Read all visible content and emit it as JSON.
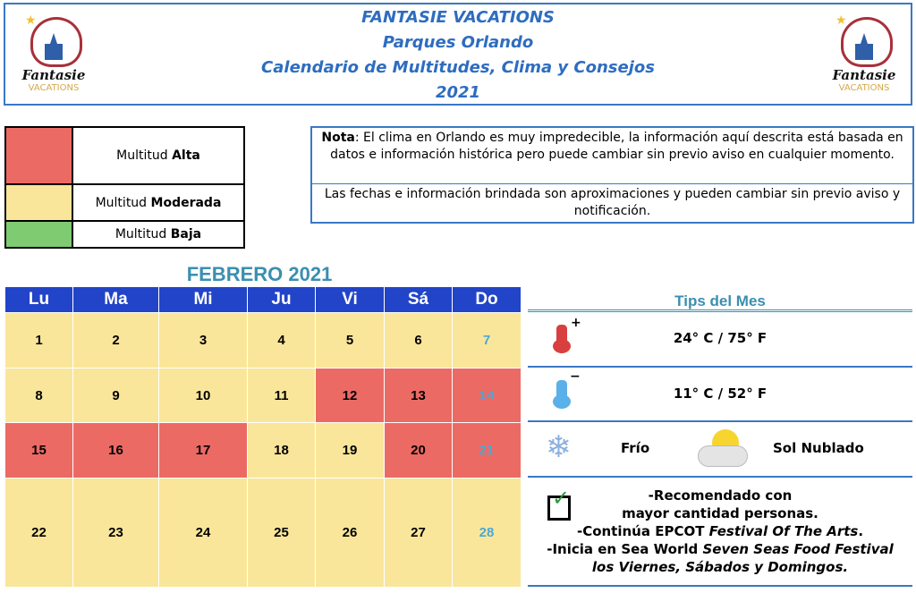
{
  "header": {
    "title": "FANTASIE VACATIONS",
    "subtitle": "Parques Orlando",
    "heading": "Calendario de Multitudes, Clima y Consejos",
    "year": "2021",
    "logo_text": "Fantasie",
    "logo_sub": "VACATIONS"
  },
  "legend": [
    {
      "prefix": "Multitud ",
      "level": "Alta",
      "color": "#ec6a64"
    },
    {
      "prefix": "Multitud ",
      "level": "Moderada",
      "color": "#fae69a"
    },
    {
      "prefix": "Multitud ",
      "level": "Baja",
      "color": "#7ecb72"
    }
  ],
  "note": {
    "label": "Nota",
    "text1": ": El clima en Orlando es muy impredecible, la información aquí descrita está basada en datos e información histórica pero puede cambiar sin previo aviso en cualquier momento.",
    "text2": "Las fechas e información brindada son aproximaciones y pueden cambiar sin previo aviso y notificación."
  },
  "calendar": {
    "title": "FEBRERO 2021",
    "days": [
      "Lu",
      "Ma",
      "Mi",
      "Ju",
      "Vi",
      "Sá",
      "Do"
    ],
    "weeks": [
      [
        {
          "d": "1",
          "c": "moderada"
        },
        {
          "d": "2",
          "c": "moderada"
        },
        {
          "d": "3",
          "c": "moderada"
        },
        {
          "d": "4",
          "c": "moderada"
        },
        {
          "d": "5",
          "c": "moderada"
        },
        {
          "d": "6",
          "c": "moderada"
        },
        {
          "d": "7",
          "c": "moderada"
        }
      ],
      [
        {
          "d": "8",
          "c": "moderada"
        },
        {
          "d": "9",
          "c": "moderada"
        },
        {
          "d": "10",
          "c": "moderada"
        },
        {
          "d": "11",
          "c": "moderada"
        },
        {
          "d": "12",
          "c": "alta"
        },
        {
          "d": "13",
          "c": "alta"
        },
        {
          "d": "14",
          "c": "alta"
        }
      ],
      [
        {
          "d": "15",
          "c": "alta"
        },
        {
          "d": "16",
          "c": "alta"
        },
        {
          "d": "17",
          "c": "alta"
        },
        {
          "d": "18",
          "c": "moderada"
        },
        {
          "d": "19",
          "c": "moderada"
        },
        {
          "d": "20",
          "c": "alta"
        },
        {
          "d": "21",
          "c": "alta"
        }
      ],
      [
        {
          "d": "22",
          "c": "moderada"
        },
        {
          "d": "23",
          "c": "moderada"
        },
        {
          "d": "24",
          "c": "moderada"
        },
        {
          "d": "25",
          "c": "moderada"
        },
        {
          "d": "26",
          "c": "moderada"
        },
        {
          "d": "27",
          "c": "moderada"
        },
        {
          "d": "28",
          "c": "moderada"
        }
      ]
    ]
  },
  "tips": {
    "title": "Tips del Mes",
    "high": "24° C / 75° F",
    "low": "11° C / 52° F",
    "cold": "Frío",
    "weather": "Sol Nublado",
    "rec1": "-Recomendado con",
    "rec2": "mayor cantidad personas.",
    "epcot_pre": "-Continúa EPCOT ",
    "epcot_it": "Festival Of The Arts",
    "epcot_post": ".",
    "sw_pre": "-Inicia en Sea World ",
    "sw_it": "Seven Seas Food Festival los Viernes, Sábados y Domingos."
  }
}
